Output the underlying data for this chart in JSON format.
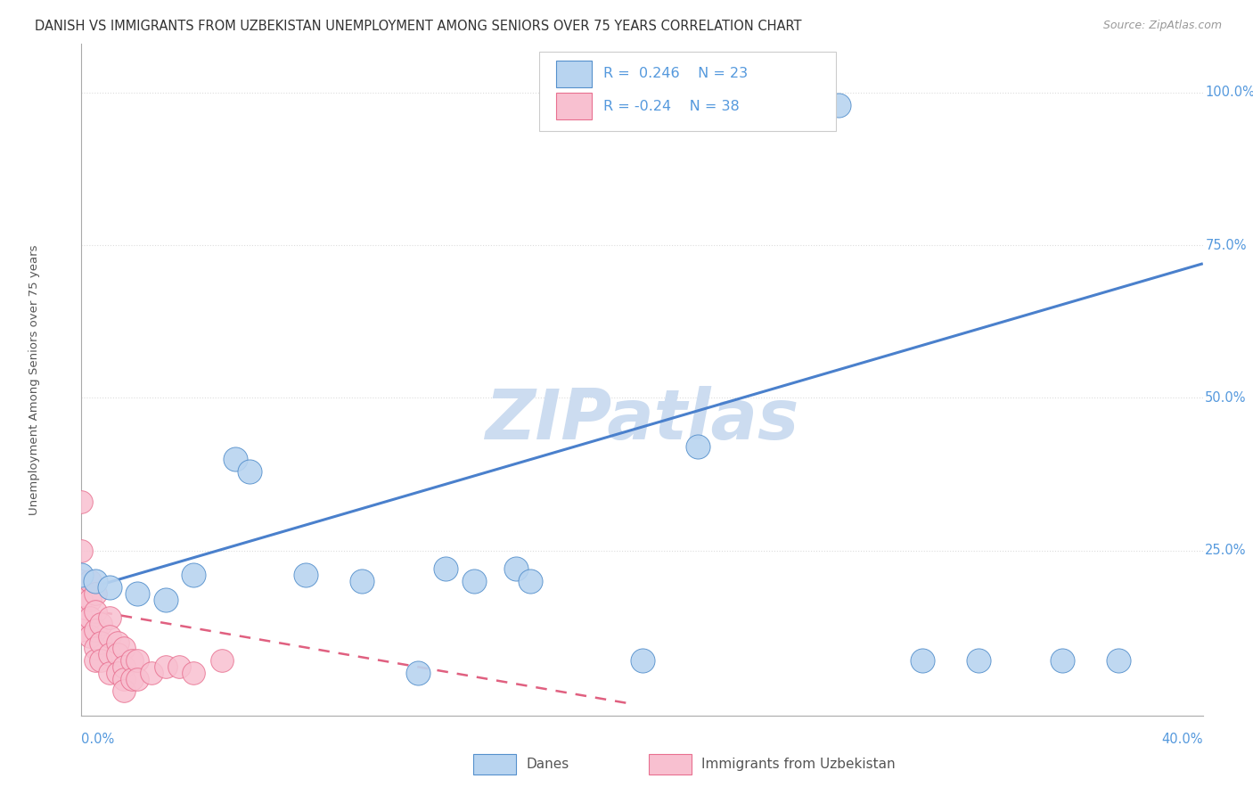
{
  "title": "DANISH VS IMMIGRANTS FROM UZBEKISTAN UNEMPLOYMENT AMONG SENIORS OVER 75 YEARS CORRELATION CHART",
  "source": "Source: ZipAtlas.com",
  "ylabel": "Unemployment Among Seniors over 75 years",
  "xlim": [
    0.0,
    0.4
  ],
  "ylim": [
    -0.02,
    1.08
  ],
  "danes_R": 0.246,
  "danes_N": 23,
  "immigrants_R": -0.24,
  "immigrants_N": 38,
  "danes_color": "#b8d4f0",
  "immigrants_color": "#f8c0d0",
  "danes_edge_color": "#5590cc",
  "immigrants_edge_color": "#e87090",
  "danes_line_color": "#4a80cc",
  "immigrants_line_color": "#e06080",
  "watermark_color": "#ccdcf0",
  "title_color": "#333333",
  "axis_label_color": "#5599dd",
  "grid_color": "#dddddd",
  "danes_x": [
    0.0,
    0.005,
    0.01,
    0.02,
    0.03,
    0.04,
    0.055,
    0.06,
    0.08,
    0.1,
    0.12,
    0.13,
    0.14,
    0.155,
    0.16,
    0.2,
    0.22,
    0.25,
    0.27,
    0.3,
    0.32,
    0.35,
    0.37
  ],
  "danes_y": [
    0.21,
    0.2,
    0.19,
    0.18,
    0.17,
    0.21,
    0.4,
    0.38,
    0.21,
    0.2,
    0.05,
    0.22,
    0.2,
    0.22,
    0.2,
    0.07,
    0.42,
    0.98,
    0.98,
    0.07,
    0.07,
    0.07,
    0.07
  ],
  "immigrants_x": [
    0.0,
    0.0,
    0.0,
    0.0,
    0.0,
    0.0,
    0.003,
    0.003,
    0.003,
    0.003,
    0.005,
    0.005,
    0.005,
    0.005,
    0.005,
    0.007,
    0.007,
    0.007,
    0.01,
    0.01,
    0.01,
    0.01,
    0.013,
    0.013,
    0.013,
    0.015,
    0.015,
    0.015,
    0.015,
    0.018,
    0.018,
    0.02,
    0.02,
    0.025,
    0.03,
    0.035,
    0.04,
    0.05
  ],
  "immigrants_y": [
    0.33,
    0.25,
    0.2,
    0.17,
    0.14,
    0.12,
    0.2,
    0.17,
    0.14,
    0.11,
    0.18,
    0.15,
    0.12,
    0.09,
    0.07,
    0.13,
    0.1,
    0.07,
    0.14,
    0.11,
    0.08,
    0.05,
    0.1,
    0.08,
    0.05,
    0.09,
    0.06,
    0.04,
    0.02,
    0.07,
    0.04,
    0.07,
    0.04,
    0.05,
    0.06,
    0.06,
    0.05,
    0.07
  ],
  "danes_line_x0": 0.0,
  "danes_line_y0": 0.185,
  "danes_line_x1": 0.4,
  "danes_line_y1": 0.72,
  "imm_line_x0": 0.0,
  "imm_line_y0": 0.155,
  "imm_line_x1": 0.195,
  "imm_line_y1": 0.0
}
